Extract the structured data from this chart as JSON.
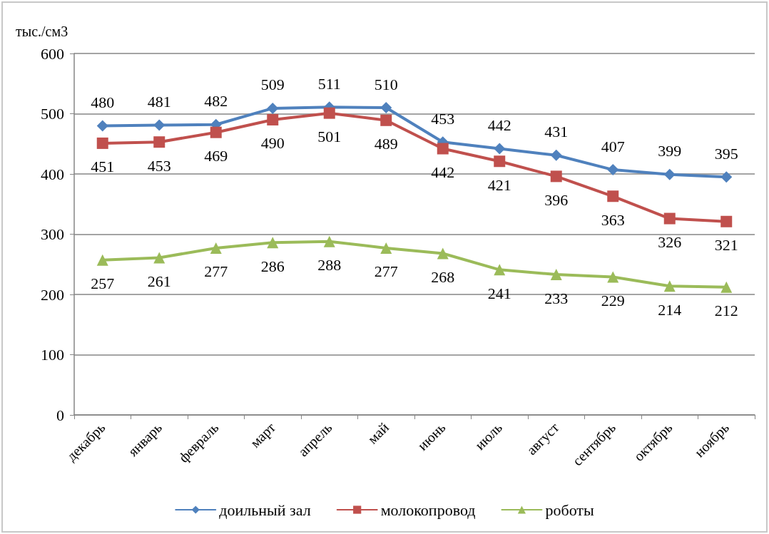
{
  "chart_data": {
    "type": "line",
    "ylabel": "тыс./см3",
    "categories": [
      "декабрь",
      "январь",
      "февраль",
      "март",
      "апрель",
      "май",
      "июнь",
      "июль",
      "август",
      "сентябрь",
      "октябрь",
      "ноябрь"
    ],
    "series": [
      {
        "name": "доильный зал",
        "color": "#4f81bd",
        "marker": "diamond",
        "values": [
          480,
          481,
          482,
          509,
          511,
          510,
          453,
          442,
          431,
          407,
          399,
          395
        ]
      },
      {
        "name": "молокопровод",
        "color": "#c0504d",
        "marker": "square",
        "values": [
          451,
          453,
          469,
          490,
          501,
          489,
          442,
          421,
          396,
          363,
          326,
          321
        ]
      },
      {
        "name": "роботы",
        "color": "#9bbb59",
        "marker": "triangle",
        "values": [
          257,
          261,
          277,
          286,
          288,
          277,
          268,
          241,
          233,
          229,
          214,
          212
        ]
      }
    ],
    "ylim": [
      0,
      600
    ],
    "yticks": [
      0,
      100,
      200,
      300,
      400,
      500,
      600
    ],
    "grid": "y",
    "legend": "bottom",
    "data_labels": true,
    "line_style": "solid"
  }
}
